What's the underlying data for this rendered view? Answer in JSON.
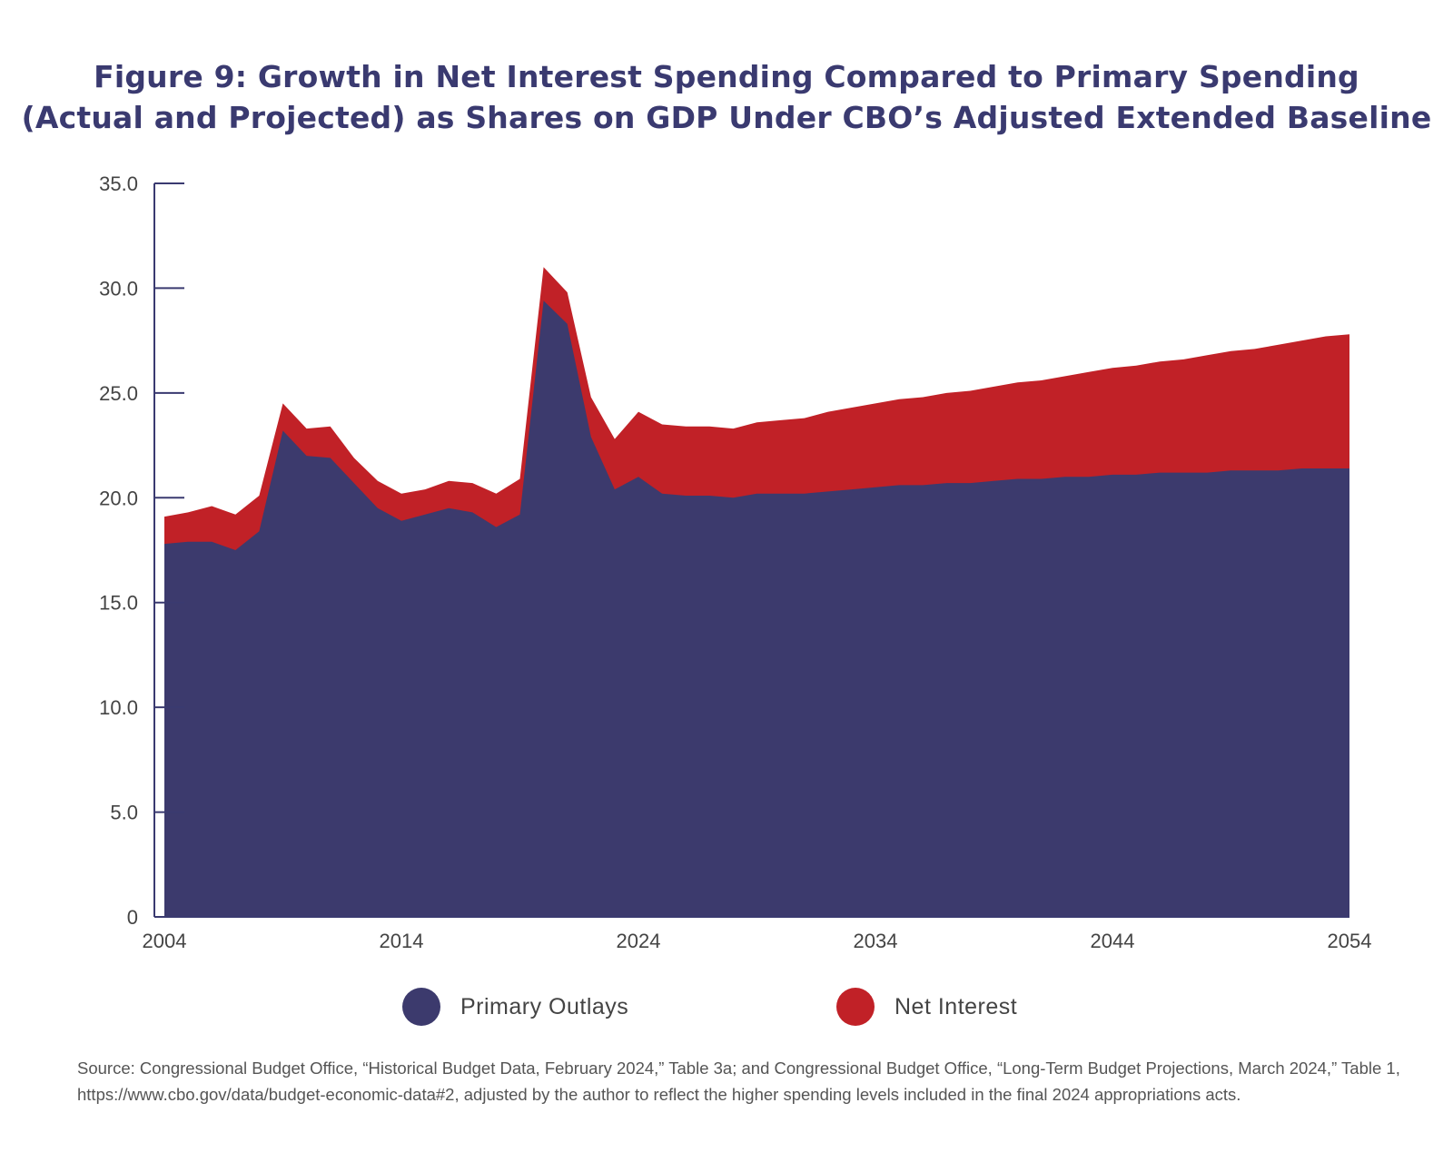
{
  "title_lines": [
    "Figure 9: Growth in Net Interest Spending Compared to Primary Spending",
    "(Actual and Projected) as Shares on GDP Under CBO’s Adjusted Extended Baseline"
  ],
  "colors": {
    "primary_outlays": "#3c3a6d",
    "net_interest": "#c12127",
    "axis": "#3a3a70",
    "title": "#3a3a70"
  },
  "legend": [
    {
      "label": "Primary Outlays",
      "color": "#3c3a6d"
    },
    {
      "label": "Net Interest",
      "color": "#c12127"
    }
  ],
  "source_text": "Source: Congressional Budget Office, “Historical Budget Data, February 2024,” Table 3a; and Congressional Budget Office, “Long-Term Budget Projections, March 2024,” Table 1, https://www.cbo.gov/data/budget-economic-data#2, adjusted by the author to reflect the higher spending levels included in the final 2024 appropriations acts.",
  "chart_data": {
    "type": "area",
    "stacked": true,
    "title": "",
    "xlabel": "",
    "ylabel": "",
    "ylim": [
      0,
      35
    ],
    "xlim": [
      2004,
      2054
    ],
    "y_ticks": [
      "0",
      "5.0",
      "10.0",
      "15.0",
      "20.0",
      "25.0",
      "30.0",
      "35.0"
    ],
    "x_ticks": [
      "2004",
      "2014",
      "2024",
      "2034",
      "2044",
      "2054"
    ],
    "legend_position": "bottom",
    "grid": false,
    "x": [
      2004,
      2005,
      2006,
      2007,
      2008,
      2009,
      2010,
      2011,
      2012,
      2013,
      2014,
      2015,
      2016,
      2017,
      2018,
      2019,
      2020,
      2021,
      2022,
      2023,
      2024,
      2025,
      2026,
      2027,
      2028,
      2029,
      2030,
      2031,
      2032,
      2033,
      2034,
      2035,
      2036,
      2037,
      2038,
      2039,
      2040,
      2041,
      2042,
      2043,
      2044,
      2045,
      2046,
      2047,
      2048,
      2049,
      2050,
      2051,
      2052,
      2053,
      2054
    ],
    "series": [
      {
        "name": "Primary Outlays",
        "values": [
          17.8,
          17.9,
          17.9,
          17.5,
          18.4,
          23.2,
          22.0,
          21.9,
          20.7,
          19.5,
          18.9,
          19.2,
          19.5,
          19.3,
          18.6,
          19.2,
          29.4,
          28.3,
          22.9,
          20.4,
          21.0,
          20.2,
          20.1,
          20.1,
          20.0,
          20.2,
          20.2,
          20.2,
          20.3,
          20.4,
          20.5,
          20.6,
          20.6,
          20.7,
          20.7,
          20.8,
          20.9,
          20.9,
          21.0,
          21.0,
          21.1,
          21.1,
          21.2,
          21.2,
          21.2,
          21.3,
          21.3,
          21.3,
          21.4,
          21.4,
          21.4
        ]
      },
      {
        "name": "Net Interest",
        "values": [
          1.3,
          1.4,
          1.7,
          1.7,
          1.7,
          1.3,
          1.3,
          1.5,
          1.2,
          1.3,
          1.3,
          1.2,
          1.3,
          1.4,
          1.6,
          1.7,
          1.6,
          1.5,
          1.9,
          2.4,
          3.1,
          3.3,
          3.3,
          3.3,
          3.3,
          3.4,
          3.5,
          3.6,
          3.8,
          3.9,
          4.0,
          4.1,
          4.2,
          4.3,
          4.4,
          4.5,
          4.6,
          4.7,
          4.8,
          5.0,
          5.1,
          5.2,
          5.3,
          5.4,
          5.6,
          5.7,
          5.8,
          6.0,
          6.1,
          6.3,
          6.4
        ]
      }
    ]
  }
}
